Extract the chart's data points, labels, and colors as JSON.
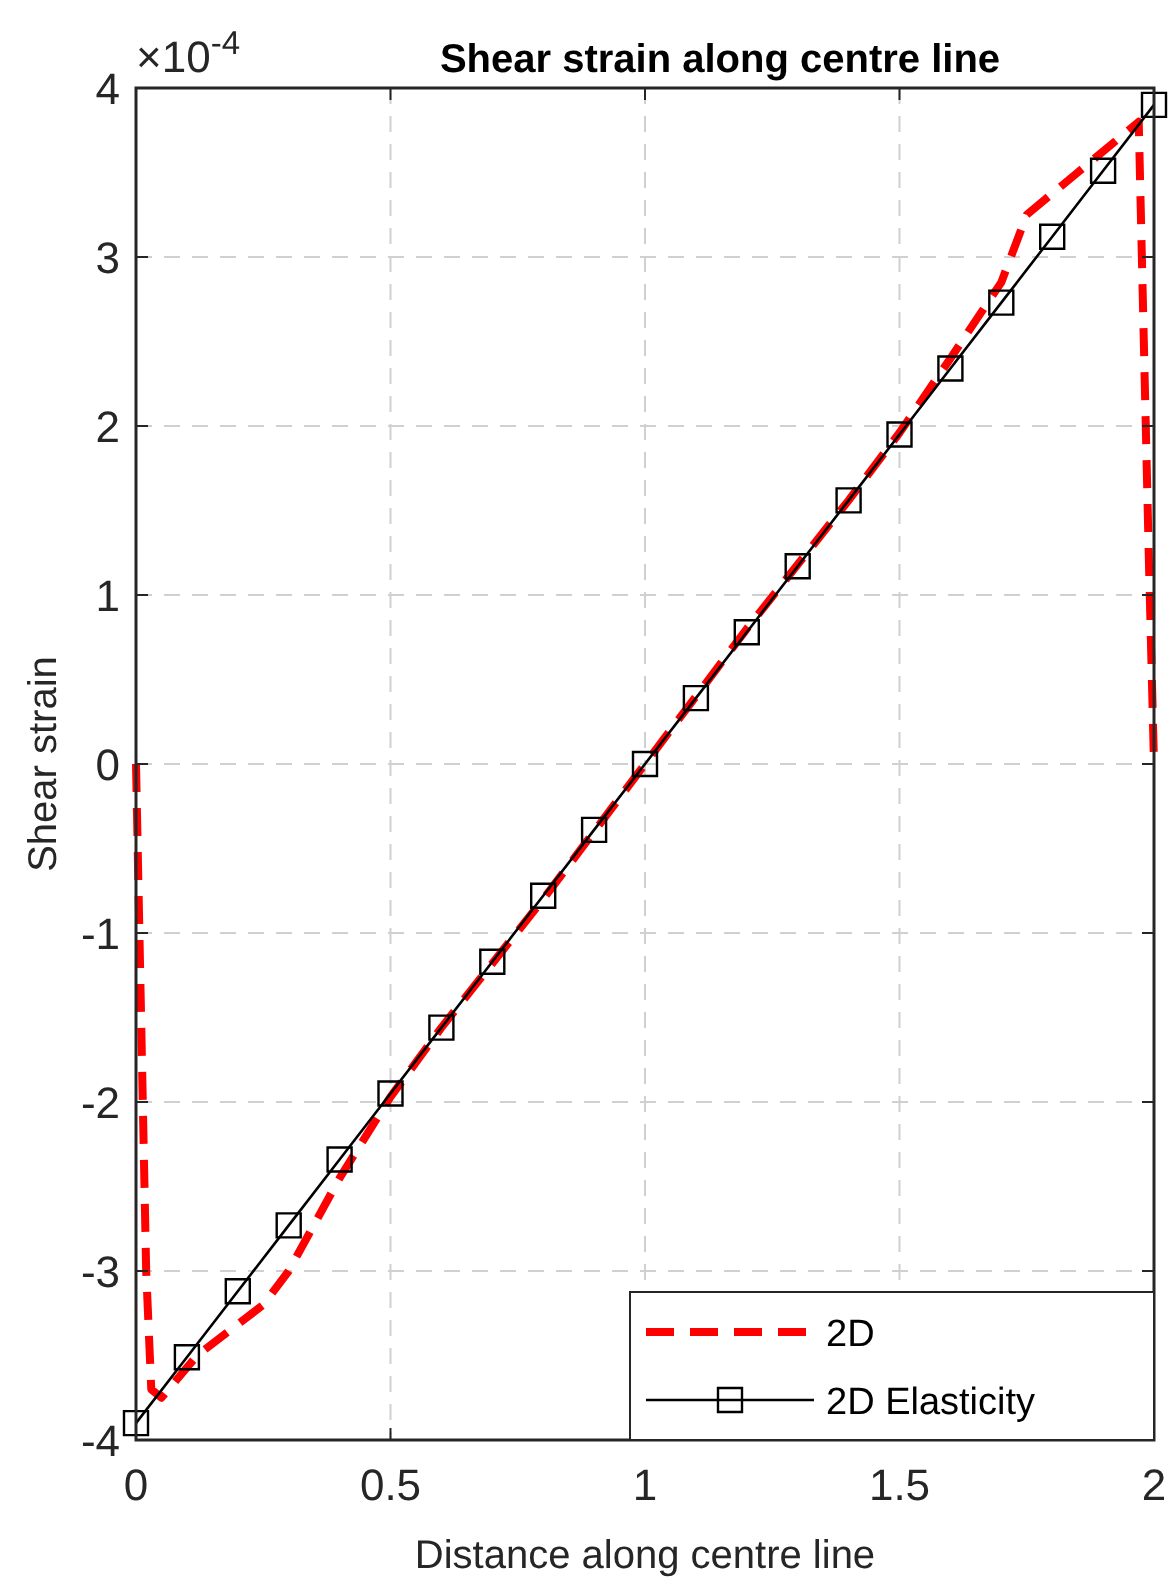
{
  "chart_data": {
    "type": "line",
    "title": "Shear strain along centre line",
    "xlabel": "Distance along centre line",
    "ylabel": "Shear strain",
    "annotations": [
      "×10$^{-4}$"
    ],
    "xlim": [
      0,
      2
    ],
    "xticks": [
      0,
      0.5,
      1,
      1.5,
      2
    ],
    "ylim": [
      -4,
      4
    ],
    "yticks": [
      -4,
      -3,
      -2,
      -1,
      0,
      1,
      2,
      3,
      4
    ],
    "grid": true,
    "legend": "bottom right",
    "series": [
      {
        "name": "2D",
        "color": "#ff0000",
        "line_style": "dashed",
        "marker": "none",
        "x": [
          0,
          0.01,
          0.02,
          0.03,
          0.05,
          0.12,
          0.25,
          0.3,
          0.4,
          0.5,
          0.6,
          0.8,
          1,
          1.2,
          1.4,
          1.5,
          1.6,
          1.7,
          1.75,
          1.85,
          1.95,
          1.97,
          1.98,
          1.99,
          2
        ],
        "values": [
          0,
          -1.5,
          -3,
          -3.7,
          -3.75,
          -3.5,
          -3.2,
          -3,
          -2.45,
          -1.97,
          -1.56,
          -0.8,
          0,
          0.8,
          1.56,
          1.96,
          2.4,
          2.85,
          3.25,
          3.5,
          3.75,
          3.8,
          2.5,
          1.2,
          0
        ]
      },
      {
        "name": "2D Elasticity",
        "color": "#000000",
        "line_style": "solid",
        "marker": "square",
        "x": [
          0,
          0.1,
          0.2,
          0.3,
          0.4,
          0.5,
          0.6,
          0.7,
          0.8,
          0.9,
          1,
          1.1,
          1.2,
          1.3,
          1.4,
          1.5,
          1.6,
          1.7,
          1.8,
          1.9,
          2
        ],
        "values": [
          -3.9,
          -3.51,
          -3.12,
          -2.73,
          -2.34,
          -1.95,
          -1.56,
          -1.17,
          -0.78,
          -0.39,
          0,
          0.39,
          0.78,
          1.17,
          1.56,
          1.95,
          2.34,
          2.73,
          3.12,
          3.51,
          3.9
        ]
      }
    ]
  }
}
